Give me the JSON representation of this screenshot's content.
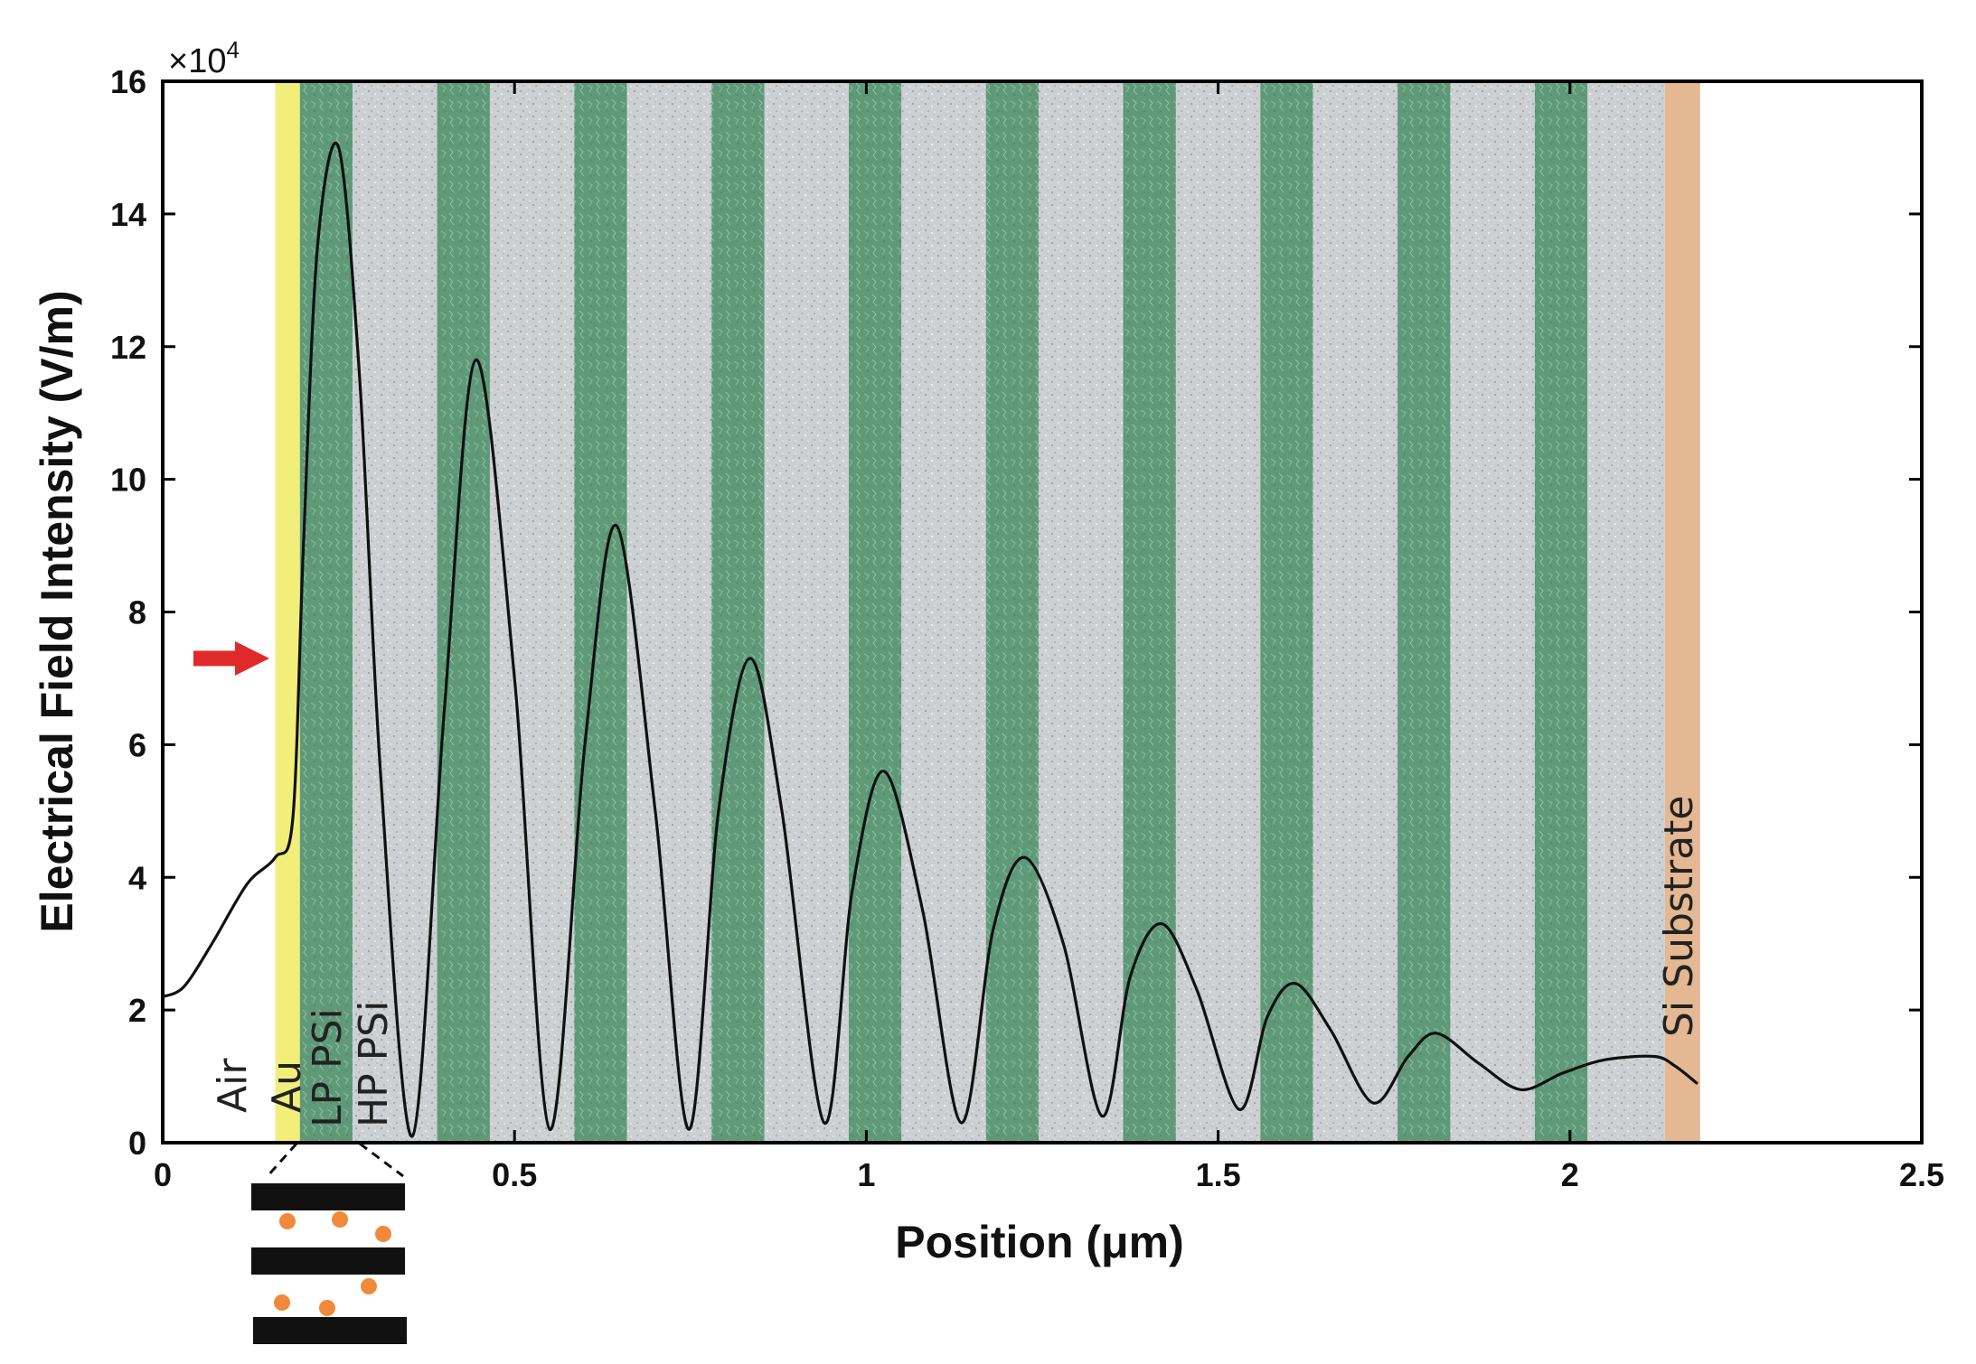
{
  "chart_data": {
    "type": "line",
    "xlabel": "Position (μm)",
    "ylabel": "Electrical Field Intensity (V/m)",
    "y_exponent_label": "×10",
    "y_exponent_power": "4",
    "xlim": [
      0,
      2.5
    ],
    "ylim": [
      0,
      16
    ],
    "x_ticks": [
      0,
      0.5,
      1,
      1.5,
      2,
      2.5
    ],
    "x_tick_labels": [
      "0",
      "0.5",
      "1",
      "1.5",
      "2",
      "2.5"
    ],
    "y_ticks": [
      0,
      2,
      4,
      6,
      8,
      10,
      12,
      14,
      16
    ],
    "y_tick_labels": [
      "0",
      "2",
      "4",
      "6",
      "8",
      "10",
      "12",
      "14",
      "16"
    ],
    "grid": false,
    "series": [
      {
        "color": "#111111",
        "x": [
          0,
          0.03,
          0.07,
          0.12,
          0.16,
          0.185,
          0.2,
          0.22,
          0.25,
          0.28,
          0.31,
          0.355,
          0.4,
          0.445,
          0.5,
          0.55,
          0.6,
          0.645,
          0.7,
          0.748,
          0.79,
          0.835,
          0.88,
          0.94,
          0.98,
          1.025,
          1.08,
          1.135,
          1.18,
          1.225,
          1.28,
          1.335,
          1.375,
          1.42,
          1.47,
          1.53,
          1.57,
          1.61,
          1.66,
          1.72,
          1.77,
          1.81,
          1.87,
          1.93,
          1.99,
          2.05,
          2.12,
          2.15,
          2.18
        ],
        "values": [
          2.2,
          2.35,
          3.0,
          3.9,
          4.3,
          4.9,
          9.0,
          13.5,
          15.0,
          11.5,
          5.5,
          0.1,
          6.5,
          11.8,
          7.0,
          0.2,
          6.0,
          9.3,
          5.0,
          0.2,
          5.0,
          7.3,
          5.0,
          0.3,
          3.8,
          5.6,
          3.5,
          0.3,
          3.2,
          4.3,
          3.0,
          0.4,
          2.5,
          3.3,
          2.3,
          0.5,
          1.9,
          2.4,
          1.7,
          0.6,
          1.3,
          1.65,
          1.2,
          0.8,
          1.05,
          1.25,
          1.3,
          1.15,
          0.9
        ]
      }
    ],
    "layers": [
      {
        "from": 0.16,
        "to": 0.195,
        "kind": "au",
        "color": "#f2ee7a"
      },
      {
        "from": 0.195,
        "to": 0.27,
        "kind": "lp",
        "color": "#5f9978"
      },
      {
        "from": 0.27,
        "to": 0.39,
        "kind": "hp",
        "color": "#cdd0d2"
      },
      {
        "from": 0.39,
        "to": 0.465,
        "kind": "lp",
        "color": "#5f9978"
      },
      {
        "from": 0.465,
        "to": 0.585,
        "kind": "hp",
        "color": "#cdd0d2"
      },
      {
        "from": 0.585,
        "to": 0.66,
        "kind": "lp",
        "color": "#5f9978"
      },
      {
        "from": 0.66,
        "to": 0.78,
        "kind": "hp",
        "color": "#cdd0d2"
      },
      {
        "from": 0.78,
        "to": 0.855,
        "kind": "lp",
        "color": "#5f9978"
      },
      {
        "from": 0.855,
        "to": 0.975,
        "kind": "hp",
        "color": "#cdd0d2"
      },
      {
        "from": 0.975,
        "to": 1.05,
        "kind": "lp",
        "color": "#5f9978"
      },
      {
        "from": 1.05,
        "to": 1.17,
        "kind": "hp",
        "color": "#cdd0d2"
      },
      {
        "from": 1.17,
        "to": 1.245,
        "kind": "lp",
        "color": "#5f9978"
      },
      {
        "from": 1.245,
        "to": 1.365,
        "kind": "hp",
        "color": "#cdd0d2"
      },
      {
        "from": 1.365,
        "to": 1.44,
        "kind": "lp",
        "color": "#5f9978"
      },
      {
        "from": 1.44,
        "to": 1.56,
        "kind": "hp",
        "color": "#cdd0d2"
      },
      {
        "from": 1.56,
        "to": 1.635,
        "kind": "lp",
        "color": "#5f9978"
      },
      {
        "from": 1.635,
        "to": 1.755,
        "kind": "hp",
        "color": "#cdd0d2"
      },
      {
        "from": 1.755,
        "to": 1.83,
        "kind": "lp",
        "color": "#5f9978"
      },
      {
        "from": 1.83,
        "to": 1.95,
        "kind": "hp",
        "color": "#cdd0d2"
      },
      {
        "from": 1.95,
        "to": 2.025,
        "kind": "lp",
        "color": "#5f9978"
      },
      {
        "from": 2.025,
        "to": 2.135,
        "kind": "hp",
        "color": "#cdd0d2"
      },
      {
        "from": 2.135,
        "to": 2.185,
        "kind": "substrate",
        "color": "#e3b892"
      }
    ],
    "region_labels": [
      "Air",
      "Au",
      "LP PSi",
      "HP PSi",
      "Si Substrate"
    ],
    "arrow": {
      "at_y": 7.3,
      "color": "#e02a2a"
    },
    "inset_particle_color": "#f08a3a"
  }
}
